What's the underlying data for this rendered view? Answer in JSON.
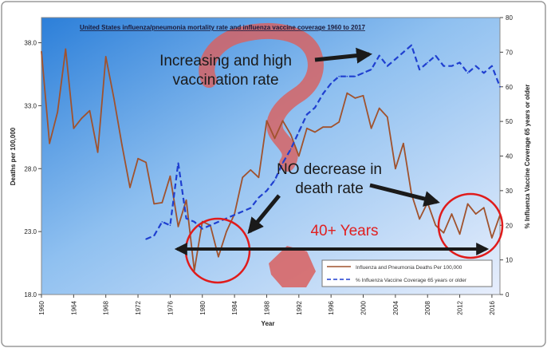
{
  "chart_data": {
    "type": "line",
    "title": "United States influenza/pneumonia mortality rate and influenza vaccine coverage 1960 to 2017",
    "xlabel": "Year",
    "ylabel": "Deaths per 100,000",
    "y2label": "% Influenza Vaccine Coverage 65 years or older",
    "xlim": [
      1960,
      2017
    ],
    "ylim": [
      18.0,
      40.0
    ],
    "y2lim": [
      0,
      80
    ],
    "x_ticks": [
      "1960",
      "1964",
      "1968",
      "1972",
      "1976",
      "1980",
      "1984",
      "1988",
      "1992",
      "1996",
      "2000",
      "2004",
      "2008",
      "2012",
      "2016"
    ],
    "y_ticks": [
      "18.0",
      "23.0",
      "28.0",
      "33.0",
      "38.0"
    ],
    "y2_ticks": [
      "0",
      "10",
      "20",
      "30",
      "40",
      "50",
      "60",
      "70",
      "80"
    ],
    "legend_position": "bottom-right",
    "grid": false,
    "series": [
      {
        "name": "Influenza and Pneumonia Deaths Per 100,000",
        "axis": "left",
        "color": "#a0522d",
        "style": "solid",
        "x": [
          1960,
          1961,
          1962,
          1963,
          1964,
          1965,
          1966,
          1967,
          1968,
          1969,
          1970,
          1971,
          1972,
          1973,
          1974,
          1975,
          1976,
          1977,
          1978,
          1979,
          1980,
          1981,
          1982,
          1983,
          1984,
          1985,
          1986,
          1987,
          1988,
          1989,
          1990,
          1991,
          1992,
          1993,
          1994,
          1995,
          1996,
          1997,
          1998,
          1999,
          2000,
          2001,
          2002,
          2003,
          2004,
          2005,
          2006,
          2007,
          2008,
          2009,
          2010,
          2011,
          2012,
          2013,
          2014,
          2015,
          2016,
          2017
        ],
        "values": [
          37.3,
          30.0,
          32.5,
          37.5,
          31.2,
          32.0,
          32.6,
          29.3,
          36.9,
          33.6,
          29.9,
          26.5,
          28.8,
          28.5,
          25.2,
          25.3,
          27.4,
          23.4,
          25.5,
          19.9,
          23.8,
          23.5,
          21.0,
          23.0,
          24.4,
          27.3,
          27.9,
          27.3,
          31.8,
          30.4,
          31.8,
          30.7,
          29.0,
          31.2,
          30.9,
          31.3,
          31.3,
          31.7,
          34.0,
          33.6,
          33.8,
          31.2,
          32.8,
          32.1,
          28.0,
          30.0,
          26.0,
          24.0,
          25.3,
          23.5,
          22.9,
          24.4,
          22.8,
          25.2,
          24.4,
          24.9,
          22.5,
          24.3
        ]
      },
      {
        "name": "% Influenza Vaccine Coverage 65 years or older",
        "axis": "right",
        "color": "#1f3fd0",
        "style": "dashed",
        "x": [
          1973,
          1974,
          1975,
          1976,
          1977,
          1978,
          1979,
          1980,
          1981,
          1982,
          1983,
          1984,
          1985,
          1986,
          1987,
          1988,
          1989,
          1990,
          1991,
          1992,
          1993,
          1994,
          1995,
          1996,
          1997,
          1998,
          1999,
          2000,
          2001,
          2002,
          2003,
          2004,
          2005,
          2006,
          2007,
          2008,
          2009,
          2010,
          2011,
          2012,
          2013,
          2014,
          2015,
          2016,
          2017
        ],
        "values": [
          16,
          17,
          21,
          20,
          38,
          22,
          21,
          19,
          20,
          21,
          22,
          23,
          24,
          25,
          28,
          30,
          33,
          38,
          42,
          47,
          52,
          54,
          58,
          61,
          63,
          63,
          63,
          64,
          65,
          69,
          66,
          68,
          70,
          72,
          65,
          67,
          69,
          66,
          66,
          67,
          64,
          66,
          64,
          66,
          60
        ]
      }
    ],
    "annotations": [
      {
        "text": "Increasing and high vaccination rate",
        "lines": [
          "Increasing and high",
          "vaccination rate"
        ],
        "color": "#1a1a1a"
      },
      {
        "text": "NO decrease in death rate",
        "lines": [
          "NO decrease in",
          "death rate"
        ],
        "color": "#1a1a1a"
      },
      {
        "text": "40+ Years",
        "color": "#e02020"
      }
    ]
  }
}
